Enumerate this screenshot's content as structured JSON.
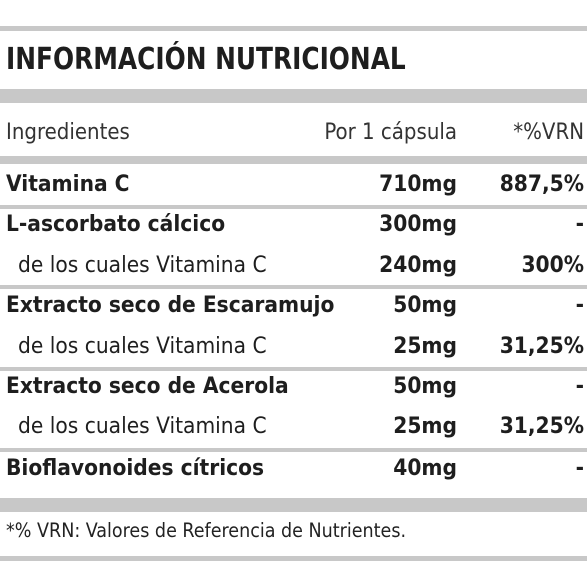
{
  "title": "INFORMACIÓN NUTRICIONAL",
  "header": {
    "ingredients": "Ingredientes",
    "per_capsule": "Por 1 cápsula",
    "vrn": "*%VRN"
  },
  "rows": [
    {
      "name": "Vitamina C",
      "amount": "710mg",
      "vrn": "887,5%"
    },
    {
      "name": "L-ascorbato cálcico",
      "amount": "300mg",
      "vrn": "-"
    },
    {
      "name": "de los cuales Vitamina C",
      "amount": "240mg",
      "vrn": "300%"
    },
    {
      "name": "Extracto seco de Escaramujo",
      "amount": "50mg",
      "vrn": "-"
    },
    {
      "name": "de los cuales Vitamina C",
      "amount": "25mg",
      "vrn": "31,25%"
    },
    {
      "name": "Extracto seco de Acerola",
      "amount": "50mg",
      "vrn": "-"
    },
    {
      "name": "de los cuales Vitamina C",
      "amount": "25mg",
      "vrn": "31,25%"
    },
    {
      "name": "Bioflavonoides cítricos",
      "amount": "40mg",
      "vrn": "-"
    }
  ],
  "footnote": "*% VRN: Valores de Referencia de Nutrientes.",
  "colors": {
    "rule": "#c8c8c8",
    "text": "#1e1e1e"
  }
}
